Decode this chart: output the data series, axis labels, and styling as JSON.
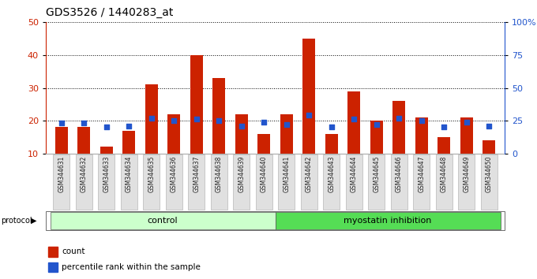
{
  "title": "GDS3526 / 1440283_at",
  "samples": [
    "GSM344631",
    "GSM344632",
    "GSM344633",
    "GSM344634",
    "GSM344635",
    "GSM344636",
    "GSM344637",
    "GSM344638",
    "GSM344639",
    "GSM344640",
    "GSM344641",
    "GSM344642",
    "GSM344643",
    "GSM344644",
    "GSM344645",
    "GSM344646",
    "GSM344647",
    "GSM344648",
    "GSM344649",
    "GSM344650"
  ],
  "count_values": [
    18,
    18,
    12,
    17,
    31,
    22,
    40,
    33,
    22,
    16,
    22,
    45,
    16,
    29,
    20,
    26,
    21,
    15,
    21,
    14
  ],
  "percentile_values": [
    23,
    23,
    20,
    21,
    27,
    25,
    26,
    25,
    21,
    24,
    22,
    29,
    20,
    26,
    22,
    27,
    25,
    20,
    24,
    21
  ],
  "groups": [
    {
      "label": "control",
      "start": 0,
      "end": 10,
      "color": "#ccffcc"
    },
    {
      "label": "myostatin inhibition",
      "start": 10,
      "end": 20,
      "color": "#55dd55"
    }
  ],
  "bar_color": "#cc2200",
  "dot_color": "#2255cc",
  "left_yticks": [
    10,
    20,
    30,
    40,
    50
  ],
  "right_ytick_vals": [
    0,
    25,
    50,
    75,
    100
  ],
  "right_ytick_labels": [
    "0",
    "25",
    "50",
    "75",
    "100%"
  ],
  "ylim_left": [
    10,
    50
  ],
  "ylim_right": [
    0,
    100
  ],
  "background_color": "#ffffff",
  "axis_label_color_left": "#cc2200",
  "axis_label_color_right": "#2255cc",
  "title_fontsize": 10
}
